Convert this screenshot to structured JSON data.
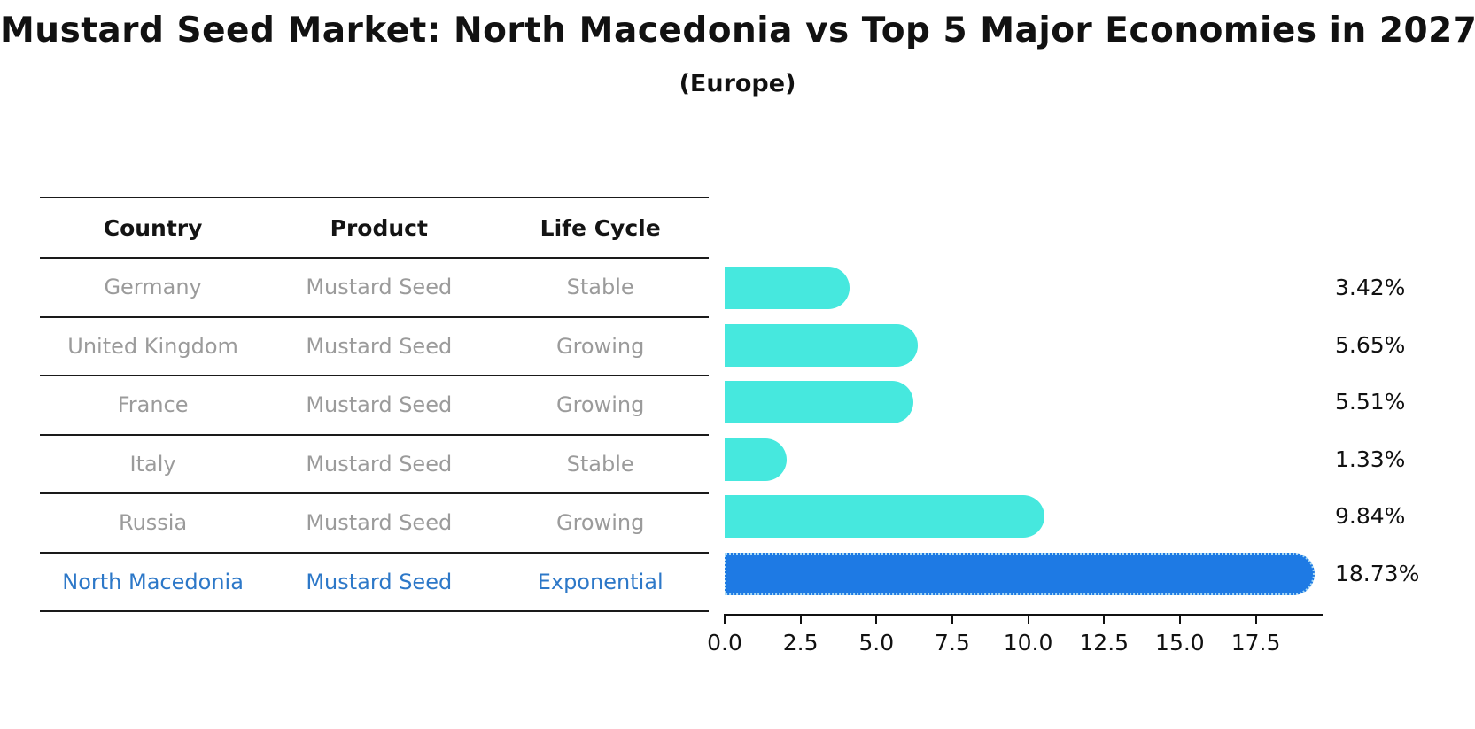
{
  "title": "Mustard Seed Market: North Macedonia vs Top 5 Major Economies in 2027",
  "subtitle": "(Europe)",
  "table": {
    "headers": [
      "Country",
      "Product",
      "Life Cycle"
    ],
    "rows": [
      {
        "country": "Germany",
        "product": "Mustard Seed",
        "life_cycle": "Stable",
        "highlight": false
      },
      {
        "country": "United Kingdom",
        "product": "Mustard Seed",
        "life_cycle": "Growing",
        "highlight": false
      },
      {
        "country": "France",
        "product": "Mustard Seed",
        "life_cycle": "Growing",
        "highlight": false
      },
      {
        "country": "Italy",
        "product": "Mustard Seed",
        "life_cycle": "Stable",
        "highlight": false
      },
      {
        "country": "Russia",
        "product": "Mustard Seed",
        "life_cycle": "Growing",
        "highlight": false
      },
      {
        "country": "North Macedonia",
        "product": "Mustard Seed",
        "life_cycle": "Exponential",
        "highlight": true
      }
    ]
  },
  "chart_data": {
    "type": "bar",
    "orientation": "horizontal",
    "categories": [
      "Germany",
      "United Kingdom",
      "France",
      "Italy",
      "Russia",
      "North Macedonia"
    ],
    "values": [
      3.42,
      5.65,
      5.51,
      1.33,
      9.84,
      18.73
    ],
    "value_labels": [
      "3.42%",
      "5.65%",
      "5.51%",
      "1.33%",
      "9.84%",
      "18.73%"
    ],
    "highlight_category": "North Macedonia",
    "title": "Mustard Seed Market: North Macedonia vs Top 5 Major Economies in 2027",
    "subtitle": "(Europe)",
    "xlabel": "",
    "ylabel": "",
    "x_tick_values": [
      0,
      2.5,
      5,
      7.5,
      10,
      12.5,
      15,
      17.5
    ],
    "x_tick_labels": [
      "0.0",
      "2.5",
      "5.0",
      "7.5",
      "10.0",
      "12.5",
      "15.0",
      "17.5"
    ],
    "xlim": [
      0,
      19.7
    ],
    "grid": false,
    "legend": "none",
    "colors": {
      "bar_default": "#46e8de",
      "bar_highlight": "#1e7ae4",
      "bar_highlight_border": "#a9d9f3",
      "row_text_gray": "#9b9b9b",
      "row_text_highlight": "#2d78c8",
      "axis_text": "#111111"
    }
  }
}
